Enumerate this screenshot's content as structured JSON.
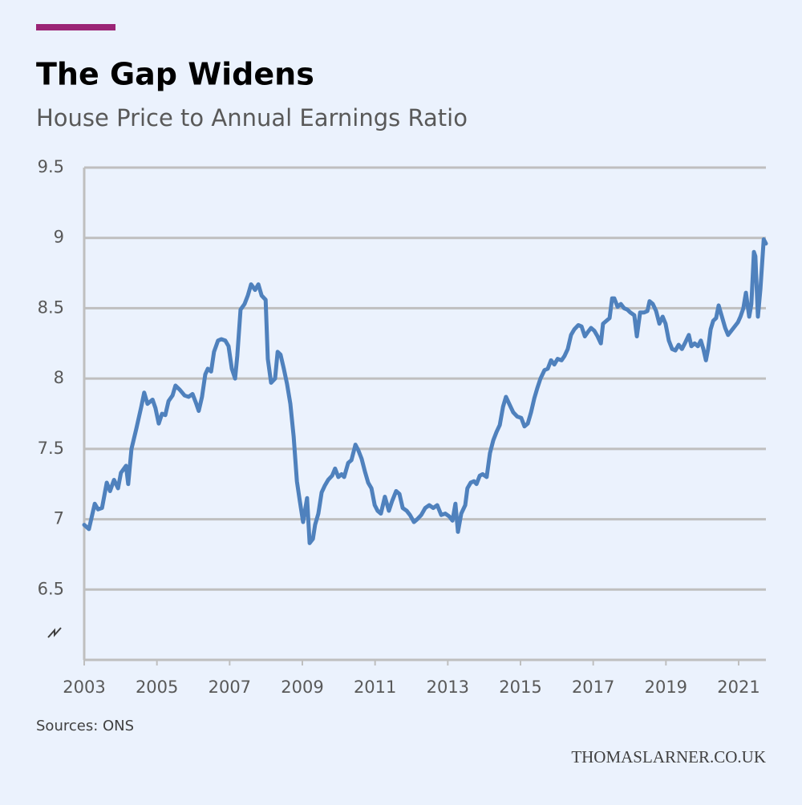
{
  "chart_data": {
    "type": "line",
    "title": "The Gap Widens",
    "subtitle": "House Price to Annual Earnings Ratio",
    "source": "Sources: ONS",
    "watermark": "THOMASLARNER.CO.UK",
    "color": "#4f81bd",
    "grid": true,
    "xlim": [
      2003,
      2021.75
    ],
    "xticks": [
      2003,
      2005,
      2007,
      2009,
      2011,
      2013,
      2015,
      2017,
      2019,
      2021
    ],
    "ylim": [
      6,
      9.5
    ],
    "yticks": [
      6.5,
      7,
      7.5,
      8,
      8.5,
      9,
      9.5
    ],
    "x": [
      2003.0,
      2003.13,
      2003.29,
      2003.38,
      2003.49,
      2003.62,
      2003.71,
      2003.82,
      2003.93,
      2004.01,
      2004.15,
      2004.21,
      2004.3,
      2004.43,
      2004.57,
      2004.65,
      2004.74,
      2004.88,
      2004.96,
      2005.05,
      2005.14,
      2005.23,
      2005.32,
      2005.43,
      2005.51,
      2005.63,
      2005.76,
      2005.87,
      2005.98,
      2006.07,
      2006.15,
      2006.24,
      2006.33,
      2006.4,
      2006.49,
      2006.57,
      2006.68,
      2006.77,
      2006.88,
      2006.97,
      2007.06,
      2007.15,
      2007.21,
      2007.3,
      2007.41,
      2007.5,
      2007.59,
      2007.7,
      2007.79,
      2007.88,
      2007.99,
      2008.05,
      2008.14,
      2008.25,
      2008.32,
      2008.4,
      2008.49,
      2008.58,
      2008.67,
      2008.76,
      2008.85,
      2008.93,
      2009.02,
      2009.13,
      2009.2,
      2009.29,
      2009.35,
      2009.44,
      2009.53,
      2009.62,
      2009.71,
      2009.82,
      2009.9,
      2009.99,
      2010.08,
      2010.15,
      2010.26,
      2010.35,
      2010.46,
      2010.54,
      2010.63,
      2010.72,
      2010.81,
      2010.9,
      2010.99,
      2011.07,
      2011.16,
      2011.27,
      2011.38,
      2011.47,
      2011.58,
      2011.67,
      2011.76,
      2011.87,
      2011.96,
      2012.07,
      2012.16,
      2012.27,
      2012.38,
      2012.49,
      2012.6,
      2012.71,
      2012.82,
      2012.93,
      2013.04,
      2013.13,
      2013.21,
      2013.28,
      2013.37,
      2013.48,
      2013.54,
      2013.63,
      2013.72,
      2013.79,
      2013.88,
      2013.96,
      2014.07,
      2014.16,
      2014.25,
      2014.34,
      2014.43,
      2014.52,
      2014.6,
      2014.69,
      2014.8,
      2014.91,
      2015.02,
      2015.11,
      2015.2,
      2015.29,
      2015.38,
      2015.46,
      2015.55,
      2015.66,
      2015.75,
      2015.84,
      2015.93,
      2016.02,
      2016.13,
      2016.21,
      2016.3,
      2016.39,
      2016.48,
      2016.59,
      2016.68,
      2016.77,
      2016.85,
      2016.94,
      2017.03,
      2017.12,
      2017.21,
      2017.27,
      2017.36,
      2017.45,
      2017.52,
      2017.58,
      2017.67,
      2017.76,
      2017.85,
      2017.94,
      2018.02,
      2018.13,
      2018.2,
      2018.29,
      2018.4,
      2018.49,
      2018.55,
      2018.64,
      2018.73,
      2018.82,
      2018.91,
      2018.99,
      2019.08,
      2019.17,
      2019.26,
      2019.35,
      2019.44,
      2019.52,
      2019.63,
      2019.7,
      2019.79,
      2019.88,
      2019.96,
      2020.03,
      2020.1,
      2020.16,
      2020.23,
      2020.3,
      2020.38,
      2020.45,
      2020.54,
      2020.63,
      2020.71,
      2020.8,
      2020.89,
      2020.98,
      2021.05,
      2021.13,
      2021.2,
      2021.29,
      2021.35,
      2021.42,
      2021.46,
      2021.53,
      2021.6,
      2021.69,
      2021.75
    ],
    "values": [
      6.96,
      6.93,
      7.11,
      7.07,
      7.08,
      7.26,
      7.2,
      7.28,
      7.22,
      7.33,
      7.38,
      7.25,
      7.5,
      7.64,
      7.8,
      7.9,
      7.82,
      7.85,
      7.79,
      7.68,
      7.75,
      7.74,
      7.84,
      7.88,
      7.95,
      7.92,
      7.88,
      7.87,
      7.89,
      7.83,
      7.77,
      7.87,
      8.03,
      8.07,
      8.05,
      8.19,
      8.27,
      8.28,
      8.27,
      8.23,
      8.07,
      8.0,
      8.16,
      8.49,
      8.53,
      8.59,
      8.67,
      8.63,
      8.67,
      8.59,
      8.56,
      8.14,
      7.97,
      8.0,
      8.19,
      8.17,
      8.07,
      7.96,
      7.82,
      7.59,
      7.27,
      7.13,
      6.98,
      7.15,
      6.83,
      6.86,
      6.96,
      7.04,
      7.19,
      7.24,
      7.28,
      7.31,
      7.36,
      7.3,
      7.32,
      7.3,
      7.4,
      7.42,
      7.53,
      7.49,
      7.43,
      7.34,
      7.26,
      7.22,
      7.1,
      7.06,
      7.04,
      7.16,
      7.06,
      7.13,
      7.2,
      7.18,
      7.08,
      7.06,
      7.03,
      6.98,
      7.0,
      7.03,
      7.08,
      7.1,
      7.08,
      7.1,
      7.03,
      7.04,
      7.02,
      6.99,
      7.11,
      6.91,
      7.04,
      7.1,
      7.22,
      7.26,
      7.27,
      7.25,
      7.31,
      7.32,
      7.3,
      7.47,
      7.56,
      7.62,
      7.67,
      7.8,
      7.87,
      7.82,
      7.76,
      7.73,
      7.72,
      7.66,
      7.68,
      7.76,
      7.86,
      7.93,
      8.0,
      8.06,
      8.07,
      8.13,
      8.1,
      8.14,
      8.13,
      8.16,
      8.21,
      8.31,
      8.35,
      8.38,
      8.37,
      8.3,
      8.33,
      8.36,
      8.34,
      8.3,
      8.25,
      8.39,
      8.41,
      8.43,
      8.57,
      8.57,
      8.51,
      8.53,
      8.5,
      8.49,
      8.47,
      8.45,
      8.3,
      8.47,
      8.47,
      8.48,
      8.55,
      8.53,
      8.48,
      8.39,
      8.44,
      8.39,
      8.27,
      8.21,
      8.2,
      8.24,
      8.21,
      8.25,
      8.31,
      8.23,
      8.25,
      8.23,
      8.27,
      8.21,
      8.13,
      8.21,
      8.35,
      8.41,
      8.43,
      8.52,
      8.44,
      8.36,
      8.31,
      8.34,
      8.37,
      8.4,
      8.44,
      8.5,
      8.61,
      8.44,
      8.53,
      8.9,
      8.87,
      8.44,
      8.64,
      8.99,
      8.96
    ]
  }
}
